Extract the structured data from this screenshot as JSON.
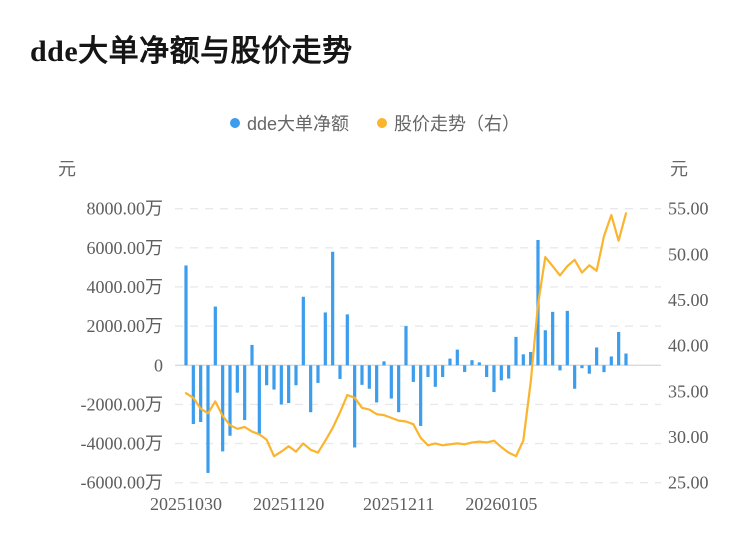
{
  "chart_data": {
    "type": "bar+line",
    "title": "dde大单净额与股价走势",
    "legend_position": "top-center",
    "grid": "horizontal-dashed",
    "n_points": 61,
    "x_axis": {
      "tick_labels": [
        "20251030",
        "20251120",
        "20251211",
        "20260105"
      ],
      "tick_indices": [
        0,
        14,
        29,
        43
      ]
    },
    "left_axis": {
      "unit": "元",
      "tick_labels": [
        "8000.00万",
        "6000.00万",
        "4000.00万",
        "2000.00万",
        "0",
        "-2000.00万",
        "-4000.00万",
        "-6000.00万"
      ],
      "tick_values": [
        8000,
        6000,
        4000,
        2000,
        0,
        -2000,
        -4000,
        -6000
      ],
      "range": [
        -6000,
        8000
      ]
    },
    "right_axis": {
      "unit": "元",
      "tick_labels": [
        "55.00",
        "50.00",
        "45.00",
        "40.00",
        "35.00",
        "30.00",
        "25.00"
      ],
      "tick_values": [
        55,
        50,
        45,
        40,
        35,
        30,
        25
      ],
      "range": [
        25,
        55
      ]
    },
    "series": [
      {
        "name": "dde大单净额",
        "type": "bar",
        "axis": "left",
        "unit": "万元",
        "color": "#3B9DEC",
        "values": [
          5100,
          -3000,
          -2900,
          -5500,
          3000,
          -4400,
          -3600,
          -1400,
          -2800,
          1040,
          -3500,
          -1020,
          -1240,
          -2000,
          -1930,
          -1020,
          3500,
          -2400,
          -900,
          2700,
          5800,
          -700,
          2600,
          -4200,
          -1000,
          -1200,
          -1900,
          200,
          -1700,
          -2400,
          2000,
          -850,
          -3100,
          -600,
          -1100,
          -600,
          340,
          800,
          -340,
          260,
          150,
          -600,
          -1370,
          -770,
          -680,
          1450,
          560,
          680,
          6400,
          1790,
          2730,
          -260,
          2780,
          -1200,
          -150,
          -430,
          910,
          -350,
          450,
          1700,
          600
        ]
      },
      {
        "name": "股价走势（右）",
        "type": "line",
        "axis": "right",
        "unit": "元",
        "color": "#FBB42E",
        "values": [
          34.8,
          34.3,
          33.1,
          32.6,
          33.9,
          32.3,
          31.3,
          30.9,
          31.1,
          30.6,
          30.3,
          29.7,
          27.9,
          28.4,
          29.0,
          28.4,
          29.3,
          28.6,
          28.3,
          29.6,
          31.0,
          32.7,
          34.6,
          34.3,
          33.2,
          33.0,
          32.5,
          32.4,
          32.1,
          31.8,
          31.7,
          31.4,
          29.9,
          29.1,
          29.3,
          29.1,
          29.2,
          29.3,
          29.2,
          29.4,
          29.5,
          29.4,
          29.6,
          28.9,
          28.3,
          27.9,
          29.6,
          36.0,
          44.5,
          49.7,
          48.7,
          47.7,
          48.7,
          49.4,
          48.0,
          48.8,
          48.2,
          52.0,
          54.3,
          51.5,
          54.5
        ]
      }
    ],
    "colors": {
      "bar": "#3B9DEC",
      "line": "#FBB42E",
      "grid_line": "#E9E9E9",
      "zero_line": "#D5D5D5",
      "tick_text": "#5E5E5E",
      "title_text": "#151515",
      "legend_text": "#666666"
    }
  }
}
